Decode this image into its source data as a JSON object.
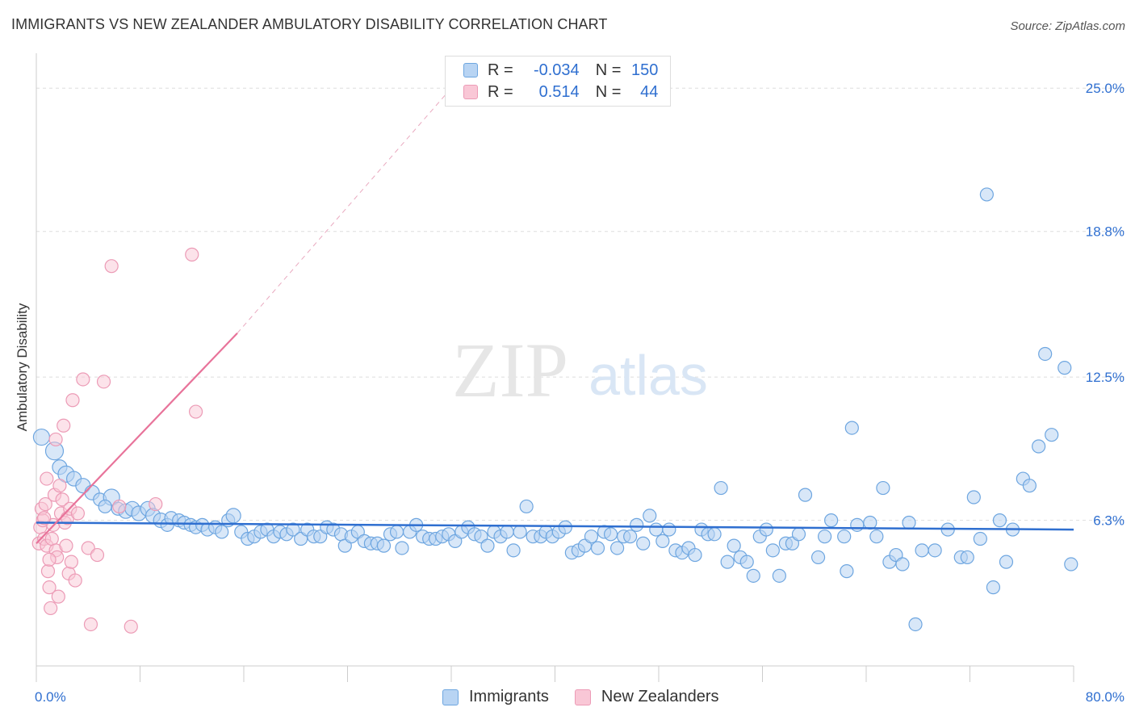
{
  "title": "IMMIGRANTS VS NEW ZEALANDER AMBULATORY DISABILITY CORRELATION CHART",
  "source": "Source: ZipAtlas.com",
  "watermark": {
    "zip": "ZIP",
    "atlas": "atlas"
  },
  "legend": {
    "immigrants": {
      "r_label": "R =",
      "r_value": "-0.034",
      "n_label": "N =",
      "n_value": "150"
    },
    "new_zealanders": {
      "r_label": "R =",
      "r_value": "0.514",
      "n_label": "N =",
      "n_value": "44"
    }
  },
  "bottom_legend": {
    "immigrants": "Immigrants",
    "new_zealanders": "New Zealanders"
  },
  "colors": {
    "blue": "#6ea6e0",
    "blue_fill": "#b8d4f3",
    "blue_line": "#2f6fd0",
    "pink": "#ec9bb6",
    "pink_fill": "#f9c7d6",
    "pink_line": "#e8739a",
    "tick_label": "#2f6fd0"
  },
  "chart_data": {
    "type": "scatter",
    "title": "IMMIGRANTS VS NEW ZEALANDER AMBULATORY DISABILITY CORRELATION CHART",
    "xlabel": "",
    "ylabel": "Ambulatory Disability",
    "xlim": [
      0,
      80
    ],
    "ylim": [
      0,
      26.3
    ],
    "x_tick_labels": [
      "0.0%",
      "80.0%"
    ],
    "y_ticks": [
      6.3,
      12.5,
      18.8,
      25.0
    ],
    "y_tick_labels": [
      "6.3%",
      "12.5%",
      "18.8%",
      "25.0%"
    ],
    "grid": true,
    "series": [
      {
        "name": "Immigrants",
        "trend": {
          "x": [
            0,
            80
          ],
          "y": [
            6.2,
            5.9
          ]
        },
        "points": [
          [
            0.4,
            9.9,
            10
          ],
          [
            1.4,
            9.3,
            11
          ],
          [
            1.8,
            8.6,
            9
          ],
          [
            2.3,
            8.3,
            10
          ],
          [
            2.9,
            8.1,
            9
          ],
          [
            3.6,
            7.8,
            9
          ],
          [
            4.3,
            7.5,
            9
          ],
          [
            4.9,
            7.2,
            8
          ],
          [
            5.8,
            7.3,
            10
          ],
          [
            5.3,
            6.9,
            8
          ],
          [
            6.3,
            6.8,
            8
          ],
          [
            6.9,
            6.7,
            9
          ],
          [
            7.4,
            6.8,
            9
          ],
          [
            7.9,
            6.6,
            9
          ],
          [
            8.6,
            6.8,
            9
          ],
          [
            9.0,
            6.5,
            9
          ],
          [
            9.6,
            6.3,
            9
          ],
          [
            10.1,
            6.1,
            8
          ],
          [
            10.4,
            6.4,
            8
          ],
          [
            11.0,
            6.3,
            8
          ],
          [
            11.4,
            6.2,
            8
          ],
          [
            11.9,
            6.1,
            8
          ],
          [
            12.3,
            6.0,
            8
          ],
          [
            12.8,
            6.1,
            8
          ],
          [
            13.2,
            5.9,
            8
          ],
          [
            13.8,
            6.0,
            8
          ],
          [
            14.3,
            5.8,
            8
          ],
          [
            14.8,
            6.3,
            8
          ],
          [
            15.2,
            6.5,
            9
          ],
          [
            15.8,
            5.8,
            8
          ],
          [
            16.3,
            5.5,
            8
          ],
          [
            16.8,
            5.6,
            8
          ],
          [
            17.3,
            5.8,
            8
          ],
          [
            17.8,
            5.9,
            8
          ],
          [
            18.3,
            5.6,
            8
          ],
          [
            18.8,
            5.8,
            8
          ],
          [
            19.3,
            5.7,
            8
          ],
          [
            19.8,
            5.9,
            8
          ],
          [
            20.4,
            5.5,
            8
          ],
          [
            20.9,
            5.9,
            8
          ],
          [
            21.4,
            5.6,
            8
          ],
          [
            21.9,
            5.6,
            8
          ],
          [
            22.4,
            6.0,
            8
          ],
          [
            22.9,
            5.9,
            8
          ],
          [
            23.5,
            5.7,
            8
          ],
          [
            23.8,
            5.2,
            8
          ],
          [
            24.3,
            5.6,
            8
          ],
          [
            24.8,
            5.8,
            8
          ],
          [
            25.3,
            5.4,
            8
          ],
          [
            25.8,
            5.3,
            8
          ],
          [
            26.3,
            5.3,
            8
          ],
          [
            26.8,
            5.2,
            8
          ],
          [
            27.3,
            5.7,
            8
          ],
          [
            27.8,
            5.8,
            8
          ],
          [
            28.2,
            5.1,
            8
          ],
          [
            28.8,
            5.8,
            8
          ],
          [
            29.3,
            6.1,
            8
          ],
          [
            29.8,
            5.6,
            8
          ],
          [
            30.3,
            5.5,
            8
          ],
          [
            30.8,
            5.5,
            8
          ],
          [
            31.3,
            5.6,
            8
          ],
          [
            31.8,
            5.7,
            8
          ],
          [
            32.3,
            5.4,
            8
          ],
          [
            32.8,
            5.8,
            8
          ],
          [
            33.3,
            6.0,
            8
          ],
          [
            33.8,
            5.7,
            8
          ],
          [
            34.3,
            5.6,
            8
          ],
          [
            34.8,
            5.2,
            8
          ],
          [
            35.3,
            5.8,
            8
          ],
          [
            35.8,
            5.6,
            8
          ],
          [
            36.3,
            5.8,
            8
          ],
          [
            36.8,
            5.0,
            8
          ],
          [
            37.3,
            5.8,
            8
          ],
          [
            37.8,
            6.9,
            8
          ],
          [
            38.3,
            5.6,
            8
          ],
          [
            38.9,
            5.6,
            8
          ],
          [
            39.3,
            5.8,
            8
          ],
          [
            39.8,
            5.6,
            8
          ],
          [
            40.3,
            5.8,
            8
          ],
          [
            40.8,
            6.0,
            8
          ],
          [
            41.3,
            4.9,
            8
          ],
          [
            41.8,
            5.0,
            8
          ],
          [
            42.3,
            5.2,
            8
          ],
          [
            42.8,
            5.6,
            8
          ],
          [
            43.3,
            5.1,
            8
          ],
          [
            43.8,
            5.8,
            8
          ],
          [
            44.3,
            5.7,
            8
          ],
          [
            44.8,
            5.1,
            8
          ],
          [
            45.3,
            5.6,
            8
          ],
          [
            45.8,
            5.6,
            8
          ],
          [
            46.3,
            6.1,
            8
          ],
          [
            46.8,
            5.3,
            8
          ],
          [
            47.3,
            6.5,
            8
          ],
          [
            47.8,
            5.9,
            8
          ],
          [
            48.3,
            5.4,
            8
          ],
          [
            48.8,
            5.9,
            8
          ],
          [
            49.3,
            5.0,
            8
          ],
          [
            49.8,
            4.9,
            8
          ],
          [
            50.3,
            5.1,
            8
          ],
          [
            50.8,
            4.8,
            8
          ],
          [
            51.3,
            5.9,
            8
          ],
          [
            51.8,
            5.7,
            8
          ],
          [
            52.3,
            5.7,
            8
          ],
          [
            52.8,
            7.7,
            8
          ],
          [
            53.3,
            4.5,
            8
          ],
          [
            53.8,
            5.2,
            8
          ],
          [
            54.3,
            4.7,
            8
          ],
          [
            54.8,
            4.5,
            8
          ],
          [
            55.3,
            3.9,
            8
          ],
          [
            55.8,
            5.6,
            8
          ],
          [
            56.3,
            5.9,
            8
          ],
          [
            56.8,
            5.0,
            8
          ],
          [
            57.3,
            3.9,
            8
          ],
          [
            57.8,
            5.3,
            8
          ],
          [
            58.3,
            5.3,
            8
          ],
          [
            58.8,
            5.7,
            8
          ],
          [
            59.3,
            7.4,
            8
          ],
          [
            60.3,
            4.7,
            8
          ],
          [
            60.8,
            5.6,
            8
          ],
          [
            61.3,
            6.3,
            8
          ],
          [
            62.3,
            5.6,
            8
          ],
          [
            62.5,
            4.1,
            8
          ],
          [
            62.9,
            10.3,
            8
          ],
          [
            63.3,
            6.1,
            8
          ],
          [
            64.3,
            6.2,
            8
          ],
          [
            64.8,
            5.6,
            8
          ],
          [
            65.3,
            7.7,
            8
          ],
          [
            65.8,
            4.5,
            8
          ],
          [
            66.3,
            4.8,
            8
          ],
          [
            66.8,
            4.4,
            8
          ],
          [
            67.3,
            6.2,
            8
          ],
          [
            67.8,
            1.8,
            8
          ],
          [
            68.3,
            5.0,
            8
          ],
          [
            69.3,
            5.0,
            8
          ],
          [
            70.3,
            5.9,
            8
          ],
          [
            71.3,
            4.7,
            8
          ],
          [
            71.8,
            4.7,
            8
          ],
          [
            72.3,
            7.3,
            8
          ],
          [
            72.8,
            5.5,
            8
          ],
          [
            73.3,
            20.4,
            8
          ],
          [
            73.8,
            3.4,
            8
          ],
          [
            74.3,
            6.3,
            8
          ],
          [
            74.8,
            4.5,
            8
          ],
          [
            75.3,
            5.9,
            8
          ],
          [
            76.1,
            8.1,
            8
          ],
          [
            76.6,
            7.8,
            8
          ],
          [
            77.3,
            9.5,
            8
          ],
          [
            77.8,
            13.5,
            8
          ],
          [
            78.3,
            10.0,
            8
          ],
          [
            79.3,
            12.9,
            8
          ],
          [
            79.8,
            4.4,
            8
          ]
        ]
      },
      {
        "name": "New Zealanders",
        "trend": {
          "x": [
            0,
            15.5
          ],
          "y": [
            5.3,
            14.4
          ]
        },
        "trend_extension": {
          "x": [
            15.5,
            32
          ],
          "y": [
            14.4,
            25.0
          ]
        },
        "points": [
          [
            0.2,
            5.3,
            8
          ],
          [
            0.3,
            6.0,
            8
          ],
          [
            0.4,
            6.8,
            8
          ],
          [
            0.5,
            6.3,
            8
          ],
          [
            0.6,
            5.5,
            8
          ],
          [
            0.7,
            7.0,
            8
          ],
          [
            0.8,
            5.2,
            8
          ],
          [
            0.9,
            4.1,
            8
          ],
          [
            1.0,
            3.4,
            8
          ],
          [
            1.1,
            2.5,
            8
          ],
          [
            1.2,
            5.5,
            8
          ],
          [
            1.3,
            6.1,
            8
          ],
          [
            1.4,
            7.4,
            8
          ],
          [
            1.5,
            5.0,
            8
          ],
          [
            1.6,
            4.7,
            8
          ],
          [
            1.7,
            3.0,
            8
          ],
          [
            1.8,
            7.8,
            8
          ],
          [
            1.9,
            6.6,
            8
          ],
          [
            2.0,
            7.2,
            8
          ],
          [
            2.1,
            10.4,
            8
          ],
          [
            2.2,
            6.2,
            8
          ],
          [
            2.3,
            5.2,
            8
          ],
          [
            2.4,
            6.4,
            8
          ],
          [
            2.5,
            4.0,
            8
          ],
          [
            2.6,
            6.8,
            8
          ],
          [
            2.7,
            4.5,
            8
          ],
          [
            2.8,
            11.5,
            8
          ],
          [
            3.0,
            3.7,
            8
          ],
          [
            3.2,
            6.6,
            8
          ],
          [
            3.6,
            12.4,
            8
          ],
          [
            4.0,
            5.1,
            8
          ],
          [
            4.2,
            1.8,
            8
          ],
          [
            4.7,
            4.8,
            8
          ],
          [
            5.2,
            12.3,
            8
          ],
          [
            5.8,
            17.3,
            8
          ],
          [
            6.4,
            6.9,
            8
          ],
          [
            7.3,
            1.7,
            8
          ],
          [
            9.2,
            7.0,
            8
          ],
          [
            12.0,
            17.8,
            8
          ],
          [
            12.3,
            11.0,
            8
          ],
          [
            1.0,
            4.6,
            8
          ],
          [
            0.6,
            6.4,
            8
          ],
          [
            1.5,
            9.8,
            8
          ],
          [
            0.8,
            8.1,
            8
          ]
        ]
      }
    ]
  }
}
